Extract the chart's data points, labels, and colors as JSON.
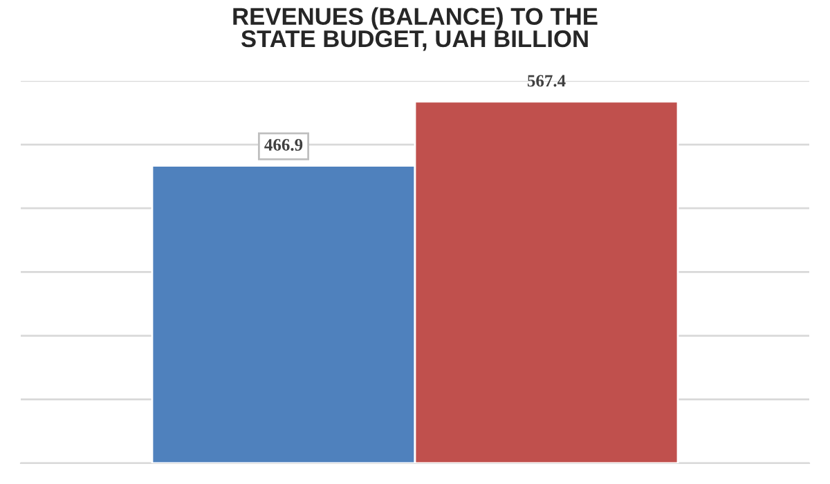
{
  "chart_data": {
    "type": "bar",
    "title": "REVENUES (BALANCE) TO THE\nSTATE BUDGET, UAH BILLION",
    "categories": [
      null,
      null
    ],
    "values": [
      466.9,
      567.4
    ],
    "colors": [
      "#4f81bd",
      "#c0504d"
    ],
    "ylim": [
      0,
      600
    ],
    "yticks": [
      {
        "value": 0,
        "label": null
      },
      {
        "value": 100,
        "label": null
      },
      {
        "value": 200,
        "label": null
      },
      {
        "value": 300,
        "label": null
      },
      {
        "value": 400,
        "label": null
      },
      {
        "value": 500,
        "label": null
      },
      {
        "value": 600,
        "label": null
      }
    ],
    "grid": "y",
    "data_labels": true
  }
}
